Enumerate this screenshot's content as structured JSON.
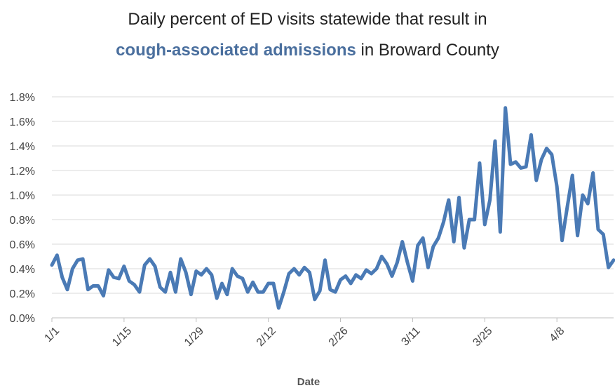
{
  "chart_data": {
    "type": "line",
    "title_line1": "Daily percent of ED visits statewide that result in",
    "title_highlight": "cough-associated admissions",
    "title_rest": " in Broward County",
    "xlabel": "Date",
    "ylabel": "",
    "yticks": [
      "0.0%",
      "0.2%",
      "0.4%",
      "0.6%",
      "0.8%",
      "1.0%",
      "1.2%",
      "1.4%",
      "1.6%",
      "1.8%"
    ],
    "ylim": [
      0,
      1.8
    ],
    "x_start": "1/1",
    "x_labels": [
      {
        "label": "1/1",
        "day": 0
      },
      {
        "label": "1/15",
        "day": 14
      },
      {
        "label": "1/29",
        "day": 28
      },
      {
        "label": "2/12",
        "day": 42
      },
      {
        "label": "2/26",
        "day": 56
      },
      {
        "label": "3/11",
        "day": 70
      },
      {
        "label": "3/25",
        "day": 84
      },
      {
        "label": "4/8",
        "day": 98
      }
    ],
    "series": [
      {
        "color": "#4a7ab5",
        "values": [
          0.43,
          0.51,
          0.33,
          0.23,
          0.4,
          0.47,
          0.48,
          0.23,
          0.26,
          0.26,
          0.18,
          0.39,
          0.33,
          0.32,
          0.42,
          0.3,
          0.27,
          0.21,
          0.43,
          0.48,
          0.42,
          0.25,
          0.21,
          0.37,
          0.21,
          0.48,
          0.37,
          0.19,
          0.38,
          0.35,
          0.4,
          0.35,
          0.16,
          0.28,
          0.19,
          0.4,
          0.34,
          0.32,
          0.21,
          0.29,
          0.21,
          0.21,
          0.28,
          0.28,
          0.08,
          0.21,
          0.36,
          0.4,
          0.35,
          0.41,
          0.37,
          0.15,
          0.22,
          0.47,
          0.23,
          0.21,
          0.31,
          0.34,
          0.28,
          0.35,
          0.32,
          0.39,
          0.36,
          0.4,
          0.5,
          0.44,
          0.34,
          0.45,
          0.62,
          0.45,
          0.3,
          0.59,
          0.65,
          0.41,
          0.58,
          0.65,
          0.78,
          0.96,
          0.62,
          0.98,
          0.57,
          0.8,
          0.8,
          1.26,
          0.76,
          0.96,
          1.44,
          0.7,
          1.71,
          1.25,
          1.27,
          1.22,
          1.23,
          1.49,
          1.12,
          1.29,
          1.38,
          1.33,
          1.07,
          0.63,
          0.9,
          1.16,
          0.67,
          1.0,
          0.93,
          1.18,
          0.72,
          0.68,
          0.41,
          0.47
        ]
      }
    ],
    "grid": "horizontal"
  }
}
